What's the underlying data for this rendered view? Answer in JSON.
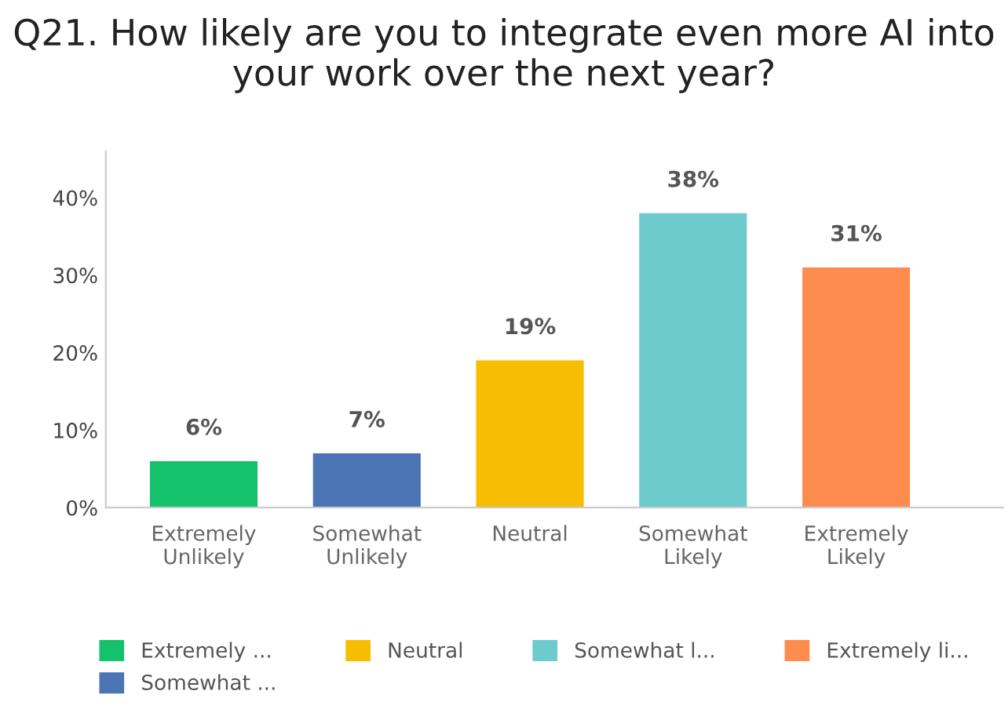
{
  "chart_data": {
    "type": "bar",
    "title": "Q21. How likely are you to integrate even more AI into your work over the next year?",
    "categories": [
      "Extremely Unlikely",
      "Somewhat Unlikely",
      "Neutral",
      "Somewhat Likely",
      "Extremely Likely"
    ],
    "series": [
      {
        "name": "Extremely ...",
        "color": "#13c26b",
        "values": [
          6,
          null,
          null,
          null,
          null
        ],
        "value_labels": [
          "6%",
          null,
          null,
          null,
          null
        ]
      },
      {
        "name": "Somewhat ...",
        "color": "#4a74b4",
        "values": [
          null,
          7,
          null,
          null,
          null
        ],
        "value_labels": [
          null,
          "7%",
          null,
          null,
          null
        ]
      },
      {
        "name": "Neutral",
        "color": "#f7bd00",
        "values": [
          null,
          null,
          19,
          null,
          null
        ],
        "value_labels": [
          null,
          null,
          "19%",
          null,
          null
        ]
      },
      {
        "name": "Somewhat l...",
        "color": "#6dcacd",
        "values": [
          null,
          null,
          null,
          38,
          null
        ],
        "value_labels": [
          null,
          null,
          null,
          "38%",
          null
        ]
      },
      {
        "name": "Extremely li...",
        "color": "#ff8c4f",
        "values": [
          null,
          null,
          null,
          null,
          31
        ],
        "value_labels": [
          null,
          null,
          null,
          null,
          "31%"
        ]
      }
    ],
    "ylim": [
      0,
      46
    ],
    "yticks": [
      {
        "value": 0,
        "label": "0%"
      },
      {
        "value": 10,
        "label": "10%"
      },
      {
        "value": 20,
        "label": "20%"
      },
      {
        "value": 30,
        "label": "30%"
      },
      {
        "value": 40,
        "label": "40%"
      }
    ],
    "grid": false,
    "legend": "bottom"
  }
}
